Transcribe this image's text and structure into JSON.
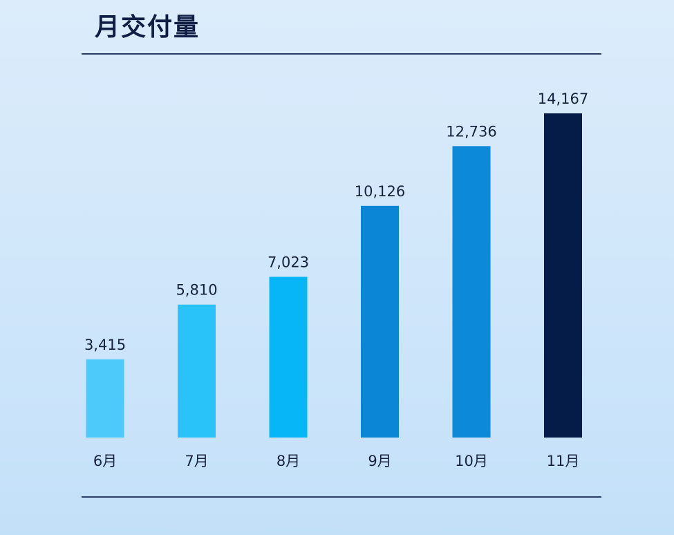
{
  "chart_data": {
    "type": "bar",
    "title": "月交付量",
    "categories": [
      "6月",
      "7月",
      "8月",
      "9月",
      "10月",
      "11月"
    ],
    "values": [
      3415,
      5810,
      7023,
      10126,
      12736,
      14167
    ],
    "value_labels": [
      "3,415",
      "5,810",
      "7,023",
      "10,126",
      "12,736",
      "14,167"
    ],
    "colors": [
      "#4dcaf9",
      "#29c3fa",
      "#06b6f7",
      "#0b86d6",
      "#0c89d8",
      "#041c47"
    ],
    "xlabel": "",
    "ylabel": "",
    "ylim": [
      0,
      14167
    ],
    "grid": false,
    "legend": "none"
  }
}
